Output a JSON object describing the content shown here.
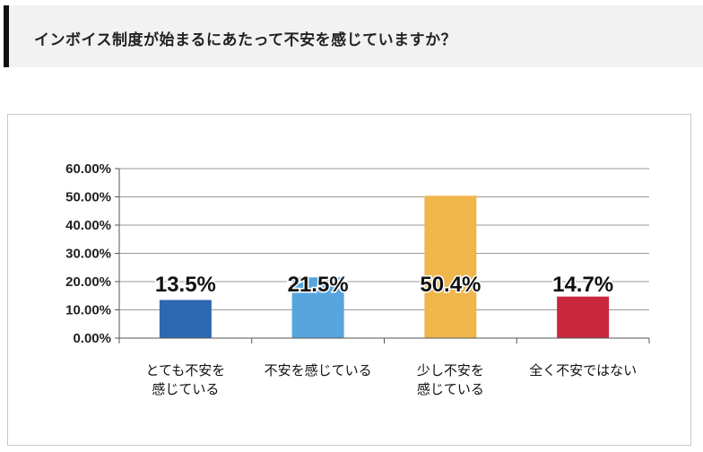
{
  "question": {
    "text": "インボイス制度が始まるにあたって不安を感じていますか？"
  },
  "chart_data": {
    "type": "bar",
    "categories": [
      [
        "とても不安を",
        "感じている"
      ],
      [
        "不安を感じている"
      ],
      [
        "少し不安を",
        "感じている"
      ],
      [
        "全く不安ではない"
      ]
    ],
    "values": [
      13.5,
      21.5,
      50.4,
      14.7
    ],
    "data_labels": [
      "13.5%",
      "21.5%",
      "50.4%",
      "14.7%"
    ],
    "colors": [
      "#2e67b1",
      "#56a5de",
      "#efb64c",
      "#c8283e"
    ],
    "ylim": [
      0,
      60
    ],
    "yticks": [
      0,
      10,
      20,
      30,
      40,
      50,
      60
    ],
    "ytick_labels": [
      "0.00%",
      "10.00%",
      "20.00%",
      "30.00%",
      "40.00%",
      "50.00%",
      "60.00%"
    ],
    "grid": true,
    "legend": "none",
    "title": "",
    "xlabel": "",
    "ylabel": ""
  }
}
